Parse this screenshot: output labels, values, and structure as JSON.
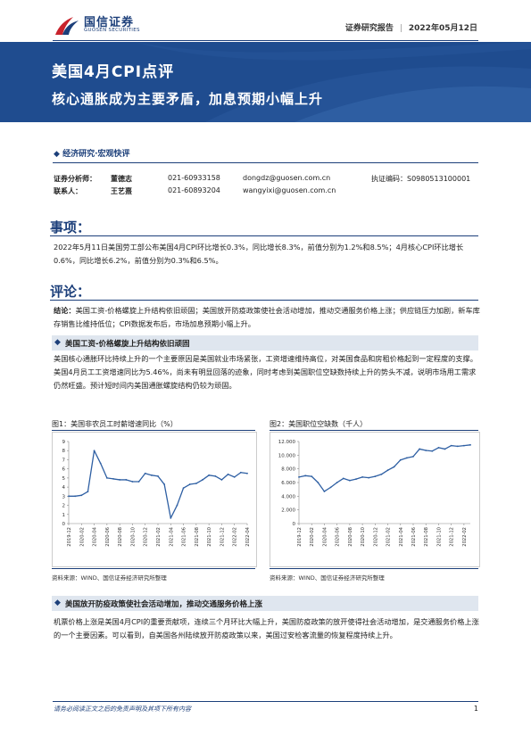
{
  "header": {
    "logo_cn": "国信证券",
    "logo_en": "GUOSEN SECURITIES",
    "report_type": "证券研究报告",
    "date": "2022年05月12日"
  },
  "banner": {
    "title": "美国4月CPI点评",
    "subtitle": "核心通胀成为主要矛盾，加息预期小幅上升",
    "color": "#1f4c8f"
  },
  "category": "经济研究·宏观快评",
  "analysts": [
    {
      "role": "证券分析师：",
      "name": "董德志",
      "phone": "021-60933158",
      "email": "dongdz@guosen.com.cn",
      "cert": "执证编码：S0980513100001"
    },
    {
      "role": "联系人：",
      "name": "王艺熹",
      "phone": "021-60893204",
      "email": "wangyixi@guosen.com.cn",
      "cert": ""
    }
  ],
  "sections": {
    "matter_title": "事项：",
    "matter_text": "2022年5月11日美国劳工部公布美国4月CPI环比增长0.3%，同比增长8.3%，前值分别为1.2%和8.5%；4月核心CPI环比增长0.6%，同比增长6.2%，前值分别为0.3%和6.5%。",
    "comment_title": "评论：",
    "conclusion_label": "结论：",
    "conclusion_text": "美国工资-价格螺旋上升结构依旧顽固；美国放开防疫政策使社会活动增加，推动交通服务价格上涨；供应链压力加剧，新车库存销售比维持低位；CPI数据发布后，市场加息预期小幅上升。",
    "sub1_title": "美国工资-价格螺旋上升结构依旧顽固",
    "sub1_text": "美国核心通胀环比持续上升的一个主要原因是美国就业市场紧张，工资增速维持高位，对美国食品和房租价格起到一定程度的支撑。美国4月员工工资增速同比为5.46%，尚未有明显回落的迹象，同时考虑到美国职位空缺数持续上升的势头不减，说明市场用工需求仍然旺盛。预计短时间内美国通胀螺旋结构仍较为顽固。",
    "sub2_title": "美国放开防疫政策使社会活动增加，推动交通服务价格上涨",
    "sub2_text": "机票价格上涨是美国4月CPI的重要贡献项，连续三个月环比大幅上升，美国防疫政策的放开使得社会活动增加，是交通服务价格上涨的一个主要因素。可以看到，自美国各州陆续放开防疫政策以来，美国过安检客流量的恢复程度持续上升。"
  },
  "figures": {
    "fig1_title": "图1：美国非农员工时薪增速同比（%）",
    "fig2_title": "图2：美国职位空缺数（千人）",
    "source": "资料来源：WIND、国信证券经济研究所整理"
  },
  "footer": {
    "disclaimer": "请务必阅读正文之后的免责声明及其项下所有内容",
    "page": "1"
  },
  "chart_data": [
    {
      "type": "line",
      "title": "图1：美国非农员工时薪增速同比（%）",
      "color": "#2e5fa3",
      "x": [
        "2019-12",
        "2020-01",
        "2020-02",
        "2020-03",
        "2020-04",
        "2020-05",
        "2020-06",
        "2020-07",
        "2020-08",
        "2020-09",
        "2020-10",
        "2020-11",
        "2020-12",
        "2021-01",
        "2021-02",
        "2021-03",
        "2021-04",
        "2021-05",
        "2021-06",
        "2021-07",
        "2021-08",
        "2021-09",
        "2021-10",
        "2021-11",
        "2021-12",
        "2022-01",
        "2022-02",
        "2022-03",
        "2022-04"
      ],
      "values": [
        3.0,
        3.0,
        3.1,
        3.5,
        8.0,
        6.6,
        5.0,
        4.9,
        4.8,
        4.8,
        4.6,
        4.6,
        5.5,
        5.3,
        5.2,
        4.3,
        0.6,
        2.0,
        3.9,
        4.3,
        4.4,
        4.8,
        5.3,
        5.2,
        4.8,
        5.4,
        5.1,
        5.6,
        5.5
      ],
      "xticks": [
        "2019-12",
        "2020-02",
        "2020-04",
        "2020-06",
        "2020-08",
        "2020-10",
        "2020-12",
        "2021-02",
        "2021-04",
        "2021-06",
        "2021-08",
        "2021-10",
        "2021-12",
        "2022-02",
        "2022-04"
      ],
      "ylim": [
        0,
        9
      ],
      "yticks": [
        0,
        1,
        2,
        3,
        4,
        5,
        6,
        7,
        8,
        9
      ]
    },
    {
      "type": "line",
      "title": "图2：美国职位空缺数（千人）",
      "color": "#2e5fa3",
      "x": [
        "2019-12",
        "2020-01",
        "2020-02",
        "2020-03",
        "2020-04",
        "2020-05",
        "2020-06",
        "2020-07",
        "2020-08",
        "2020-09",
        "2020-10",
        "2020-11",
        "2020-12",
        "2021-01",
        "2021-02",
        "2021-03",
        "2021-04",
        "2021-05",
        "2021-06",
        "2021-07",
        "2021-08",
        "2021-09",
        "2021-10",
        "2021-11",
        "2021-12",
        "2022-01",
        "2022-02",
        "2022-03"
      ],
      "values": [
        6800,
        7000,
        6900,
        6000,
        4700,
        5300,
        6000,
        6600,
        6300,
        6500,
        6800,
        6700,
        6900,
        7200,
        7800,
        8300,
        9300,
        9600,
        9800,
        10900,
        10700,
        10600,
        11100,
        10900,
        11400,
        11300,
        11400,
        11500
      ],
      "xticks": [
        "2019-12",
        "2020-02",
        "2020-04",
        "2020-06",
        "2020-08",
        "2020-10",
        "2020-12",
        "2021-02",
        "2021-04",
        "2021-06",
        "2021-08",
        "2021-10",
        "2021-12",
        "2022-02"
      ],
      "ylim": [
        0,
        12000
      ],
      "yticks": [
        "0",
        "2.000",
        "4.000",
        "6.000",
        "8.000",
        "10.000",
        "12.000"
      ]
    }
  ]
}
